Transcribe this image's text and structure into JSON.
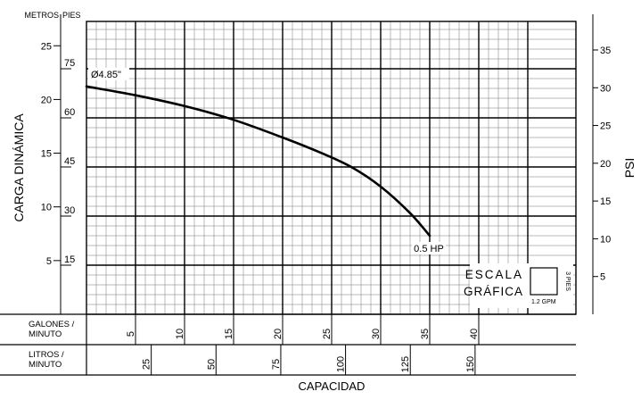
{
  "chart_data": {
    "type": "line",
    "xlabel": "CAPACIDAD",
    "ylabel": "CARGA DINÁMICA",
    "y2label": "PSI",
    "y_units_left": {
      "metros": "METROS",
      "pies": "PIES"
    },
    "y_ticks_metros": [
      5,
      10,
      15,
      20,
      25
    ],
    "y_ticks_pies": [
      15,
      30,
      45,
      60,
      75
    ],
    "y_ticks_psi": [
      5,
      10,
      15,
      20,
      25,
      30,
      35
    ],
    "ylim_pies": [
      0,
      90
    ],
    "xlim_gpm": [
      0,
      40
    ],
    "x_rows": [
      {
        "label_line1": "GALONES /",
        "label_line2": "MINUTO",
        "unit": "gpm",
        "ticks": [
          5,
          10,
          15,
          20,
          25,
          30,
          35,
          40
        ]
      },
      {
        "label_line1": "LITROS /",
        "label_line2": "MINUTO",
        "unit": "lpm",
        "ticks": [
          25,
          50,
          75,
          100,
          125,
          150
        ]
      }
    ],
    "grid": true,
    "series": [
      {
        "name": "0.5 HP",
        "curve_label": "Ø4.85\"",
        "x": [
          0,
          5,
          10,
          15,
          20,
          24,
          27,
          30,
          33,
          35
        ],
        "y": [
          69.6,
          66.9,
          63.6,
          59.4,
          54.0,
          49.2,
          45.0,
          39.0,
          30.9,
          24.0
        ]
      }
    ],
    "scale_legend": {
      "title_line1": "ESCALA",
      "title_line2": "GRÁFICA",
      "x_step": "1.2 GPM",
      "y_step": "3 PIES"
    }
  }
}
